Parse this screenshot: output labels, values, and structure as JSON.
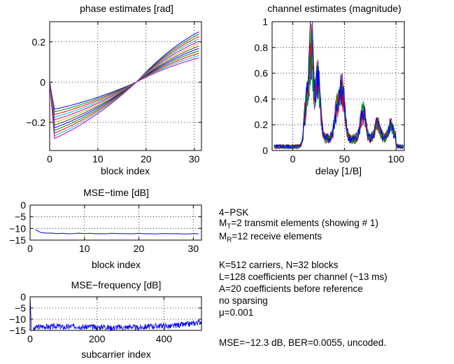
{
  "colors": {
    "background": "#ffffff",
    "axes": "#000000",
    "grid": "#000000",
    "mse_line": "#0000ff",
    "series": [
      "#0000ff",
      "#008000",
      "#ff0000",
      "#00bfbf",
      "#bf00bf",
      "#bfbf00",
      "#404040"
    ]
  },
  "chart_data": [
    {
      "type": "line",
      "title": "phase estimates [rad]",
      "xlabel": "block index",
      "ylabel": "",
      "xlim": [
        0,
        31.5
      ],
      "ylim": [
        -0.34,
        0.3
      ],
      "xticks": [
        0,
        10,
        20,
        30
      ],
      "xtick_labels": [
        "0",
        "10",
        "20",
        "30"
      ],
      "yticks": [
        -0.2,
        0,
        0.2
      ],
      "ytick_labels": [
        "−0.2",
        "0",
        "0.2"
      ],
      "grid": true,
      "series_count": 12,
      "dip_values": [
        -0.135,
        -0.16,
        -0.18,
        -0.2,
        -0.22,
        -0.24,
        -0.26,
        -0.28
      ],
      "end_values": [
        0.25,
        0.23,
        0.21,
        0.2,
        0.18,
        0.16,
        0.14,
        0.12
      ],
      "crossing_block": 18
    },
    {
      "type": "line",
      "title": "channel estimates (magnitude)",
      "xlabel": "delay [1/B]",
      "ylabel": "",
      "xlim": [
        -20,
        108
      ],
      "ylim": [
        0,
        1
      ],
      "xticks": [
        0,
        50,
        100
      ],
      "xtick_labels": [
        "0",
        "50",
        "100"
      ],
      "yticks": [
        0,
        0.2,
        0.4,
        0.6,
        0.8,
        1
      ],
      "ytick_labels": [
        "0",
        "0.2",
        "0.4",
        "0.6",
        "0.8",
        "1"
      ],
      "grid": true,
      "series_count": 12,
      "peaks": [
        {
          "delay": 18,
          "value": 1.0
        },
        {
          "delay": 24,
          "value": 0.6
        },
        {
          "delay": 14,
          "value": 0.4
        },
        {
          "delay": 48,
          "value": 0.44
        },
        {
          "delay": 43,
          "value": 0.3
        },
        {
          "delay": 68,
          "value": 0.28
        },
        {
          "delay": 82,
          "value": 0.15
        },
        {
          "delay": 95,
          "value": 0.13
        }
      ]
    },
    {
      "type": "line",
      "title": "MSE−time [dB]",
      "xlabel": "block index",
      "ylabel": "",
      "xlim": [
        0,
        31.5
      ],
      "ylim": [
        -15,
        0
      ],
      "xticks": [
        0,
        10,
        20,
        30
      ],
      "xtick_labels": [
        "0",
        "10",
        "20",
        "30"
      ],
      "yticks": [
        0,
        -5,
        -10,
        -15
      ],
      "ytick_labels": [
        "0",
        "−5",
        "−10",
        "−15"
      ],
      "grid": true,
      "x": [
        1,
        2,
        3,
        4,
        5,
        6,
        7,
        8,
        9,
        10,
        11,
        12,
        13,
        14,
        15,
        16,
        17,
        18,
        19,
        20,
        21,
        22,
        23,
        24,
        25,
        26,
        27,
        28,
        29,
        30,
        31
      ],
      "values": [
        -10.6,
        -11.8,
        -12.0,
        -12.0,
        -12.2,
        -12.1,
        -12.3,
        -12.2,
        -12.0,
        -12.2,
        -12.1,
        -12.3,
        -12.2,
        -12.3,
        -12.1,
        -12.2,
        -12.2,
        -12.3,
        -12.3,
        -12.1,
        -12.3,
        -12.2,
        -12.4,
        -12.2,
        -12.2,
        -12.3,
        -12.2,
        -12.4,
        -12.4,
        -12.2,
        -12.3
      ]
    },
    {
      "type": "line",
      "title": "MSE−frequency [dB]",
      "xlabel": "subcarrier index",
      "ylabel": "",
      "xlim": [
        0,
        512
      ],
      "ylim": [
        -15,
        0
      ],
      "xticks": [
        0,
        200,
        400
      ],
      "xtick_labels": [
        "0",
        "200",
        "400"
      ],
      "yticks": [
        0,
        -5,
        -10,
        -15
      ],
      "ytick_labels": [
        "0",
        "−5",
        "−10",
        "−15"
      ],
      "grid": true,
      "x": [
        0,
        4,
        8,
        20,
        40,
        60,
        80,
        100,
        120,
        140,
        160,
        180,
        200,
        220,
        240,
        260,
        280,
        300,
        320,
        340,
        360,
        380,
        400,
        420,
        440,
        460,
        480,
        500,
        512
      ],
      "values": [
        0,
        -15,
        -15,
        -13.5,
        -13.2,
        -13.5,
        -13.0,
        -13.6,
        -13.3,
        -13.0,
        -13.5,
        -13.3,
        -13.8,
        -13.2,
        -13.9,
        -13.5,
        -13.7,
        -13.3,
        -13.9,
        -13.4,
        -13.2,
        -13.0,
        -12.8,
        -13.3,
        -12.6,
        -12.5,
        -12.0,
        -11.5,
        -11.0
      ]
    }
  ],
  "info": {
    "modulation": "4−PSK",
    "mt_symbol": "M",
    "mt_sub": "T",
    "mt_text": "=2 transmit elements (showing # 1)",
    "mr_symbol": "M",
    "mr_sub": "R",
    "mr_text": "=12 receive elements",
    "line_k": "K=512 carriers, N=32 blocks",
    "line_l": "L=128 coefficients per channel  (~13 ms)",
    "line_a": "A=20 coefficients before reference",
    "line_sparse": "no sparsing",
    "line_mu": "μ=0.001",
    "line_summary": "MSE=−12.3 dB, BER=0.0055, uncoded."
  }
}
